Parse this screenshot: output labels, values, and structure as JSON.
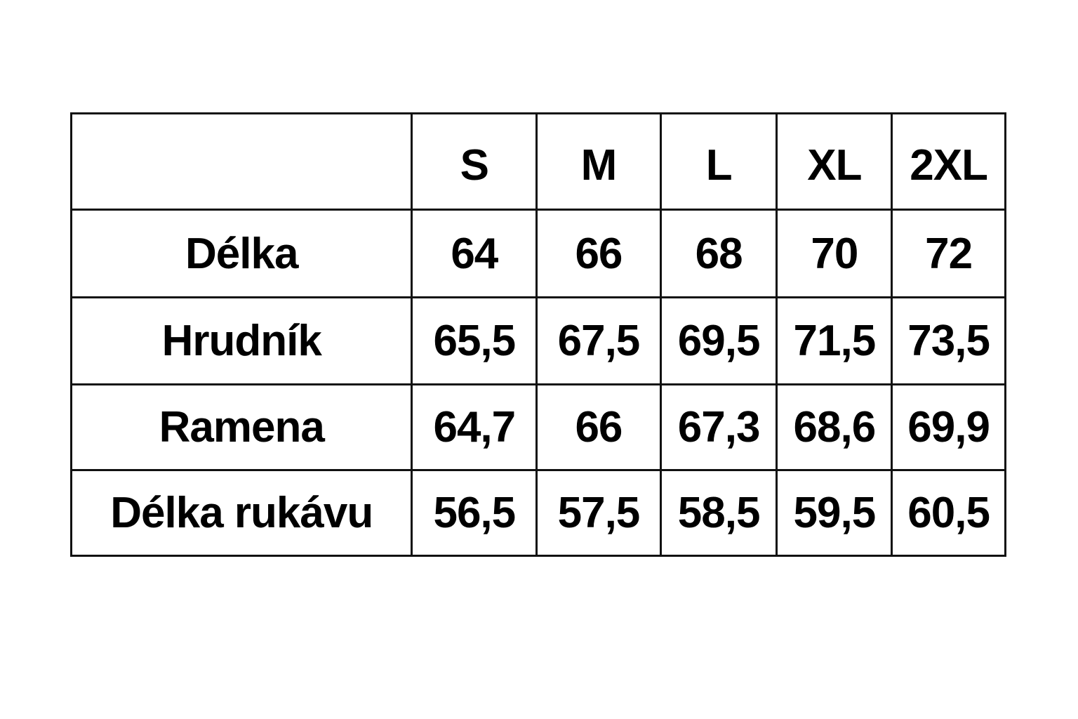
{
  "table": {
    "corner": "",
    "sizes": [
      "S",
      "M",
      "L",
      "XL",
      "2XL"
    ],
    "rows": [
      {
        "label": "Délka",
        "values": [
          "64",
          "66",
          "68",
          "70",
          "72"
        ]
      },
      {
        "label": "Hrudník",
        "values": [
          "65,5",
          "67,5",
          "69,5",
          "71,5",
          "73,5"
        ]
      },
      {
        "label": "Ramena",
        "values": [
          "64,7",
          "66",
          "67,3",
          "68,6",
          "69,9"
        ]
      },
      {
        "label": "Délka rukávu",
        "values": [
          "56,5",
          "57,5",
          "58,5",
          "59,5",
          "60,5"
        ]
      }
    ]
  }
}
